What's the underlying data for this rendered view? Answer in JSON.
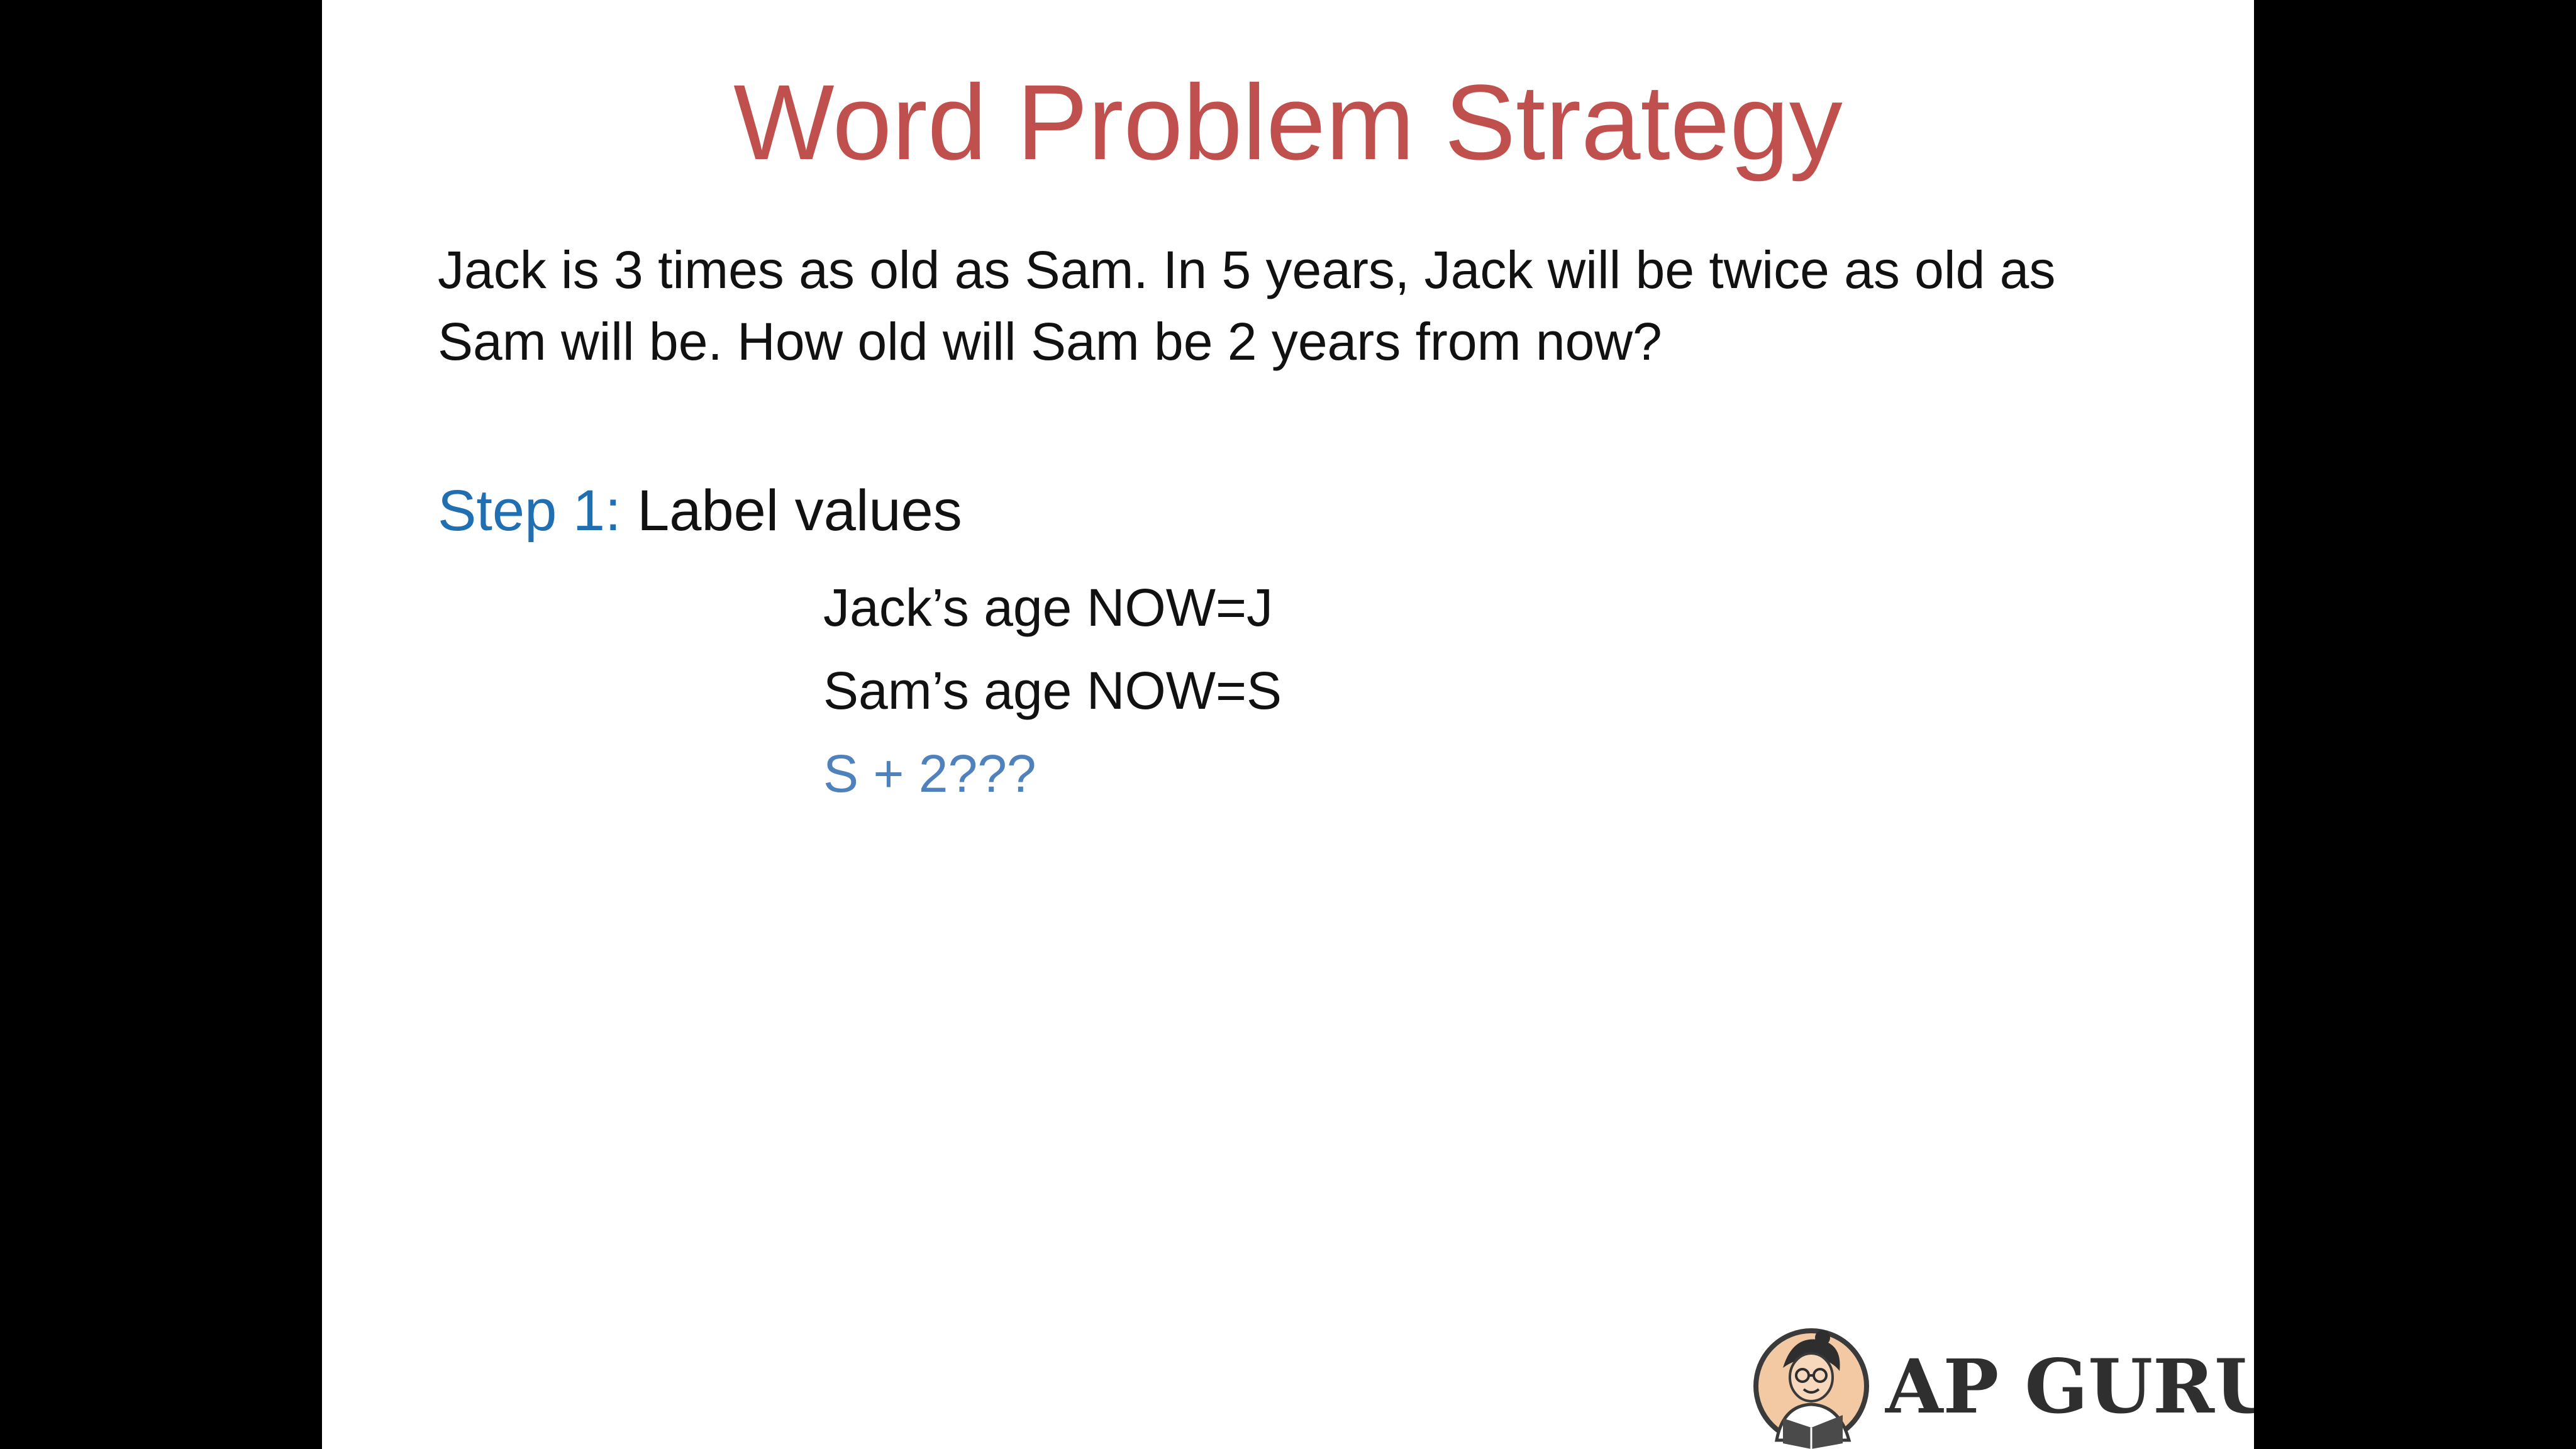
{
  "slide": {
    "title": "Word Problem Strategy",
    "problem_line_1": "Jack is 3 times as old as Sam. In 5 years, Jack will be twice as old as",
    "problem_line_2": "Sam will be. How old will Sam be 2 years from now?",
    "step_label": "Step 1:",
    "step_text": " Label values",
    "values": [
      "Jack’s age NOW=J",
      "Sam’s age NOW=S",
      "S + 2???"
    ]
  },
  "branding": {
    "logo_text": "AP GURU",
    "logo_icon": "tutor-avatar-icon"
  },
  "colors": {
    "title": "#c0504d",
    "step_label": "#1f6fb2",
    "highlight": "#4f81bd"
  }
}
